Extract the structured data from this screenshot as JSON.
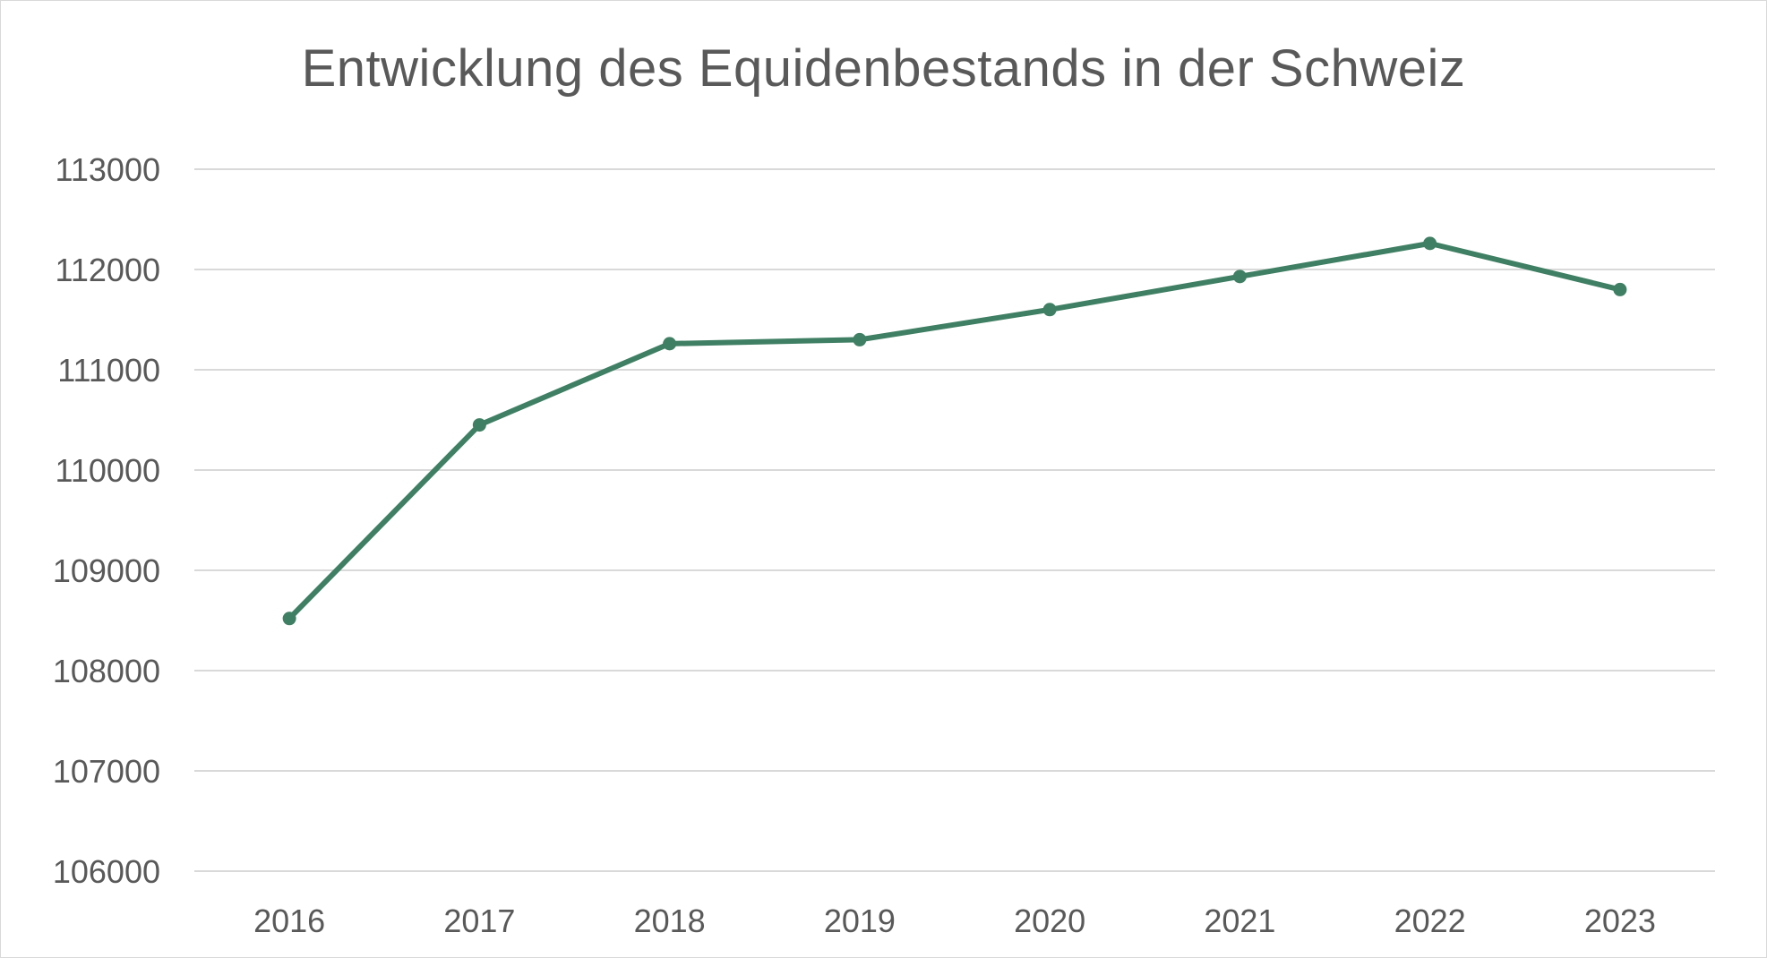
{
  "chart_data": {
    "type": "line",
    "title": "Entwicklung des Equidenbestands in der Schweiz",
    "xlabel": "",
    "ylabel": "",
    "categories": [
      "2016",
      "2017",
      "2018",
      "2019",
      "2020",
      "2021",
      "2022",
      "2023"
    ],
    "series": [
      {
        "values": [
          108520,
          110450,
          111260,
          111300,
          111600,
          111930,
          112260,
          111800
        ],
        "color": "#3f7f63"
      }
    ],
    "ylim": [
      106000,
      113000
    ],
    "yticks": [
      "106000",
      "107000",
      "108000",
      "109000",
      "110000",
      "111000",
      "112000",
      "113000"
    ],
    "grid": true,
    "legend": "none",
    "markers": true
  }
}
